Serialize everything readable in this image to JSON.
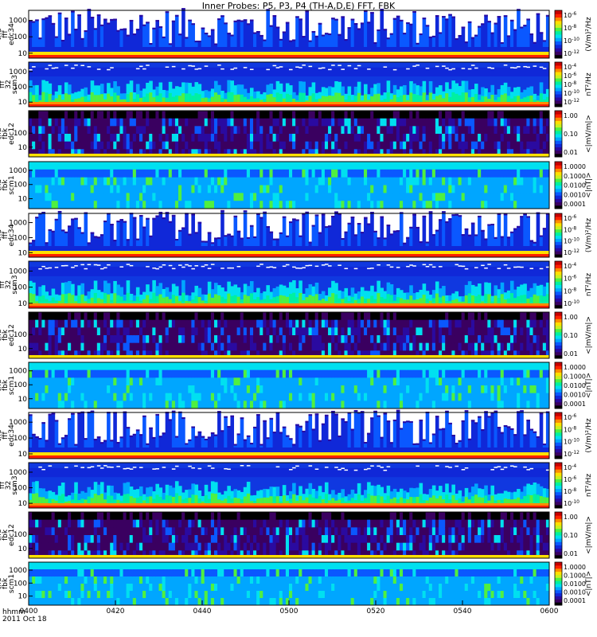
{
  "header": {
    "title": "Inner Probes: P5, P3, P4 (TH-A,D,E) FFT, FBK"
  },
  "footer": {
    "time_label": "hhmm",
    "date_label": "2011 Oct 18"
  },
  "colors": {
    "palette": [
      "#000000",
      "#3a0060",
      "#2a0aa0",
      "#1028d8",
      "#0a58ff",
      "#00a6ff",
      "#00e0f0",
      "#00f0a0",
      "#50f040",
      "#c8f020",
      "#ffe000",
      "#ff8c00",
      "#ff2000",
      "#c80000"
    ]
  },
  "chart_data": {
    "type": "heatmap",
    "title": "Inner Probes: P5, P3, P4 (TH-A,D,E) FFT, FBK",
    "x_axis": {
      "label": "hhmm",
      "date": "2011 Oct 18",
      "range_minutes": [
        0,
        120
      ],
      "ticks": [
        {
          "minute": 0,
          "label": "0400"
        },
        {
          "minute": 20,
          "label": "0420"
        },
        {
          "minute": 40,
          "label": "0440"
        },
        {
          "minute": 60,
          "label": "0500"
        },
        {
          "minute": 80,
          "label": "0520"
        },
        {
          "minute": 100,
          "label": "0540"
        },
        {
          "minute": 120,
          "label": "0600"
        }
      ]
    },
    "panels": [
      {
        "probe": "tha",
        "ylabel": [
          "tha",
          "fff",
          "edc34"
        ],
        "kind": "fff_e",
        "yticks": [
          "1000",
          "100",
          "10"
        ],
        "ylim": [
          5,
          4096
        ],
        "cbar_ticks": [
          "10",
          "10",
          "10",
          "10"
        ],
        "cbar_exps": [
          "-6",
          "-8",
          "-10",
          "-12"
        ],
        "cbar_unit": "(V/m)²/Hz"
      },
      {
        "probe": "tha",
        "ylabel": [
          "tha",
          "fff",
          "32",
          "scm3"
        ],
        "kind": "fff_b",
        "yticks": [
          "1000",
          "100",
          "10"
        ],
        "ylim": [
          5,
          4096
        ],
        "cbar_ticks": [
          "10",
          "10",
          "10",
          "10",
          "10"
        ],
        "cbar_exps": [
          "-4",
          "-6",
          "-8",
          "-10",
          "-12"
        ],
        "cbar_unit": "nT²/Hz"
      },
      {
        "probe": "tha",
        "ylabel": [
          "tha",
          "fbk",
          "edc12"
        ],
        "kind": "fbk_e",
        "yticks": [
          "100",
          "10"
        ],
        "ylim": [
          2,
          4096
        ],
        "cbar_ticks": [
          "1.00",
          "0.10",
          "0.01"
        ],
        "cbar_exps": [],
        "cbar_unit": "<|mV/m|>"
      },
      {
        "probe": "tha",
        "ylabel": [
          "tha",
          "fbk",
          "scm1"
        ],
        "kind": "fbk_b",
        "yticks": [
          "1000",
          "100",
          "10"
        ],
        "ylim": [
          2,
          4096
        ],
        "cbar_ticks": [
          "1.0000",
          "0.1000",
          "0.0100",
          "0.0010",
          "0.0001"
        ],
        "cbar_exps": [],
        "cbar_unit": "<|nT|>"
      },
      {
        "probe": "thd",
        "ylabel": [
          "thd",
          "fff",
          "edc34"
        ],
        "kind": "fff_e",
        "yticks": [
          "1000",
          "100",
          "10"
        ],
        "ylim": [
          5,
          4096
        ],
        "cbar_ticks": [
          "10",
          "10",
          "10",
          "10"
        ],
        "cbar_exps": [
          "-6",
          "-8",
          "-10",
          "-12"
        ],
        "cbar_unit": "(V/m)²/Hz"
      },
      {
        "probe": "thd",
        "ylabel": [
          "thd",
          "fff",
          "32",
          "scm3"
        ],
        "kind": "fff_b",
        "yticks": [
          "1000",
          "100",
          "10"
        ],
        "ylim": [
          5,
          4096
        ],
        "cbar_ticks": [
          "10",
          "10",
          "10",
          "10"
        ],
        "cbar_exps": [
          "-4",
          "-6",
          "-8",
          "-10"
        ],
        "cbar_unit": "nT²/Hz"
      },
      {
        "probe": "thd",
        "ylabel": [
          "thd",
          "fbk",
          "edc12"
        ],
        "kind": "fbk_e",
        "yticks": [
          "100",
          "10"
        ],
        "ylim": [
          2,
          4096
        ],
        "cbar_ticks": [
          "1.00",
          "0.10",
          "0.01"
        ],
        "cbar_exps": [],
        "cbar_unit": "<|mV/m|>"
      },
      {
        "probe": "thd",
        "ylabel": [
          "thd",
          "fbk",
          "scm1"
        ],
        "kind": "fbk_b",
        "yticks": [
          "1000",
          "100",
          "10"
        ],
        "ylim": [
          2,
          4096
        ],
        "cbar_ticks": [
          "1.0000",
          "0.1000",
          "0.0100",
          "0.0010",
          "0.0001"
        ],
        "cbar_exps": [],
        "cbar_unit": "<|nT|>"
      },
      {
        "probe": "the",
        "ylabel": [
          "the",
          "fff",
          "edc34"
        ],
        "kind": "fff_e",
        "yticks": [
          "1000",
          "100",
          "10"
        ],
        "ylim": [
          5,
          4096
        ],
        "cbar_ticks": [
          "10",
          "10",
          "10",
          "10"
        ],
        "cbar_exps": [
          "-6",
          "-8",
          "-10",
          "-12"
        ],
        "cbar_unit": "(V/m)²/Hz"
      },
      {
        "probe": "the",
        "ylabel": [
          "the",
          "fff",
          "32",
          "scm3"
        ],
        "kind": "fff_b",
        "yticks": [
          "1000",
          "100",
          "10"
        ],
        "ylim": [
          5,
          4096
        ],
        "cbar_ticks": [
          "10",
          "10",
          "10",
          "10"
        ],
        "cbar_exps": [
          "-4",
          "-6",
          "-8",
          "-10"
        ],
        "cbar_unit": "nT²/Hz"
      },
      {
        "probe": "the",
        "ylabel": [
          "the",
          "fbk",
          "edc12"
        ],
        "kind": "fbk_e",
        "yticks": [
          "100",
          "10"
        ],
        "ylim": [
          2,
          4096
        ],
        "cbar_ticks": [
          "1.00",
          "0.10",
          "0.01"
        ],
        "cbar_exps": [],
        "cbar_unit": "<|mV/m|>"
      },
      {
        "probe": "the",
        "ylabel": [
          "the",
          "fbk",
          "scm1"
        ],
        "kind": "fbk_b",
        "yticks": [
          "1000",
          "100",
          "10"
        ],
        "ylim": [
          2,
          4096
        ],
        "cbar_ticks": [
          "1.0000",
          "0.1000",
          "0.0100",
          "0.0010",
          "0.0001"
        ],
        "cbar_exps": [],
        "cbar_unit": "<|nT|>"
      }
    ]
  }
}
